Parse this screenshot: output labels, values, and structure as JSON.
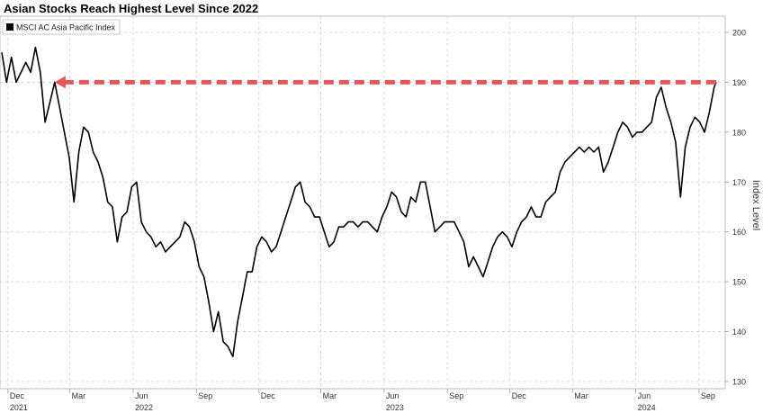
{
  "chart_data": {
    "type": "line",
    "title": "Asian Stocks Reach Highest Level Since 2022",
    "ylabel": "Index Level",
    "ylim": [
      130,
      202
    ],
    "yticks": [
      130,
      140,
      150,
      160,
      170,
      180,
      190,
      200
    ],
    "x_tick_labels": [
      {
        "month": "Dec",
        "year": "2021"
      },
      {
        "month": "Mar",
        "year": ""
      },
      {
        "month": "Jun",
        "year": "2022"
      },
      {
        "month": "Sep",
        "year": ""
      },
      {
        "month": "Dec",
        "year": ""
      },
      {
        "month": "Mar",
        "year": ""
      },
      {
        "month": "Jun",
        "year": "2023"
      },
      {
        "month": "Sep",
        "year": ""
      },
      {
        "month": "Dec",
        "year": ""
      },
      {
        "month": "Mar",
        "year": ""
      },
      {
        "month": "Jun",
        "year": "2024"
      },
      {
        "month": "Sep",
        "year": ""
      }
    ],
    "grid": true,
    "legend_position": "top-left",
    "series": [
      {
        "name": "MSCI AC Asia Pacific Index",
        "color": "#000000",
        "points": [
          [
            "2021-11-22",
            196
          ],
          [
            "2021-11-29",
            190
          ],
          [
            "2021-12-06",
            195
          ],
          [
            "2021-12-13",
            190
          ],
          [
            "2021-12-20",
            192
          ],
          [
            "2021-12-27",
            194
          ],
          [
            "2022-01-03",
            192
          ],
          [
            "2022-01-10",
            197
          ],
          [
            "2022-01-17",
            192
          ],
          [
            "2022-01-24",
            182
          ],
          [
            "2022-01-31",
            186
          ],
          [
            "2022-02-07",
            190
          ],
          [
            "2022-02-14",
            185
          ],
          [
            "2022-02-21",
            180
          ],
          [
            "2022-02-28",
            175
          ],
          [
            "2022-03-07",
            166
          ],
          [
            "2022-03-14",
            176
          ],
          [
            "2022-03-21",
            181
          ],
          [
            "2022-03-28",
            180
          ],
          [
            "2022-04-04",
            176
          ],
          [
            "2022-04-11",
            174
          ],
          [
            "2022-04-18",
            171
          ],
          [
            "2022-04-25",
            166
          ],
          [
            "2022-05-02",
            165
          ],
          [
            "2022-05-09",
            158
          ],
          [
            "2022-05-16",
            163
          ],
          [
            "2022-05-23",
            164
          ],
          [
            "2022-05-30",
            169
          ],
          [
            "2022-06-06",
            170
          ],
          [
            "2022-06-13",
            162
          ],
          [
            "2022-06-20",
            160
          ],
          [
            "2022-06-27",
            159
          ],
          [
            "2022-07-04",
            157
          ],
          [
            "2022-07-11",
            158
          ],
          [
            "2022-07-18",
            156
          ],
          [
            "2022-07-25",
            157
          ],
          [
            "2022-08-01",
            158
          ],
          [
            "2022-08-08",
            159
          ],
          [
            "2022-08-15",
            162
          ],
          [
            "2022-08-22",
            161
          ],
          [
            "2022-08-29",
            158
          ],
          [
            "2022-09-05",
            153
          ],
          [
            "2022-09-12",
            151
          ],
          [
            "2022-09-19",
            146
          ],
          [
            "2022-09-26",
            140
          ],
          [
            "2022-10-03",
            144
          ],
          [
            "2022-10-10",
            138
          ],
          [
            "2022-10-17",
            137
          ],
          [
            "2022-10-24",
            135
          ],
          [
            "2022-10-31",
            142
          ],
          [
            "2022-11-07",
            147
          ],
          [
            "2022-11-14",
            152
          ],
          [
            "2022-11-21",
            152
          ],
          [
            "2022-11-28",
            157
          ],
          [
            "2022-12-05",
            159
          ],
          [
            "2022-12-12",
            158
          ],
          [
            "2022-12-19",
            156
          ],
          [
            "2022-12-26",
            157
          ],
          [
            "2023-01-02",
            160
          ],
          [
            "2023-01-09",
            163
          ],
          [
            "2023-01-16",
            166
          ],
          [
            "2023-01-23",
            169
          ],
          [
            "2023-01-30",
            170
          ],
          [
            "2023-02-06",
            166
          ],
          [
            "2023-02-13",
            165
          ],
          [
            "2023-02-20",
            163
          ],
          [
            "2023-02-27",
            163
          ],
          [
            "2023-03-06",
            160
          ],
          [
            "2023-03-13",
            157
          ],
          [
            "2023-03-20",
            158
          ],
          [
            "2023-03-27",
            161
          ],
          [
            "2023-04-03",
            161
          ],
          [
            "2023-04-10",
            162
          ],
          [
            "2023-04-17",
            162
          ],
          [
            "2023-04-24",
            161
          ],
          [
            "2023-05-01",
            162
          ],
          [
            "2023-05-08",
            162
          ],
          [
            "2023-05-15",
            161
          ],
          [
            "2023-05-22",
            160
          ],
          [
            "2023-05-29",
            163
          ],
          [
            "2023-06-05",
            165
          ],
          [
            "2023-06-12",
            168
          ],
          [
            "2023-06-19",
            167
          ],
          [
            "2023-06-26",
            164
          ],
          [
            "2023-07-03",
            163
          ],
          [
            "2023-07-10",
            167
          ],
          [
            "2023-07-17",
            166
          ],
          [
            "2023-07-24",
            170
          ],
          [
            "2023-07-31",
            170
          ],
          [
            "2023-08-07",
            165
          ],
          [
            "2023-08-14",
            160
          ],
          [
            "2023-08-21",
            161
          ],
          [
            "2023-08-28",
            162
          ],
          [
            "2023-09-04",
            162
          ],
          [
            "2023-09-11",
            162
          ],
          [
            "2023-09-18",
            160
          ],
          [
            "2023-09-25",
            158
          ],
          [
            "2023-10-02",
            153
          ],
          [
            "2023-10-09",
            155
          ],
          [
            "2023-10-16",
            153
          ],
          [
            "2023-10-23",
            151
          ],
          [
            "2023-10-30",
            154
          ],
          [
            "2023-11-06",
            157
          ],
          [
            "2023-11-13",
            159
          ],
          [
            "2023-11-20",
            160
          ],
          [
            "2023-11-27",
            159
          ],
          [
            "2023-12-04",
            157
          ],
          [
            "2023-12-11",
            160
          ],
          [
            "2023-12-18",
            162
          ],
          [
            "2023-12-25",
            163
          ],
          [
            "2024-01-01",
            165
          ],
          [
            "2024-01-08",
            163
          ],
          [
            "2024-01-15",
            163
          ],
          [
            "2024-01-22",
            166
          ],
          [
            "2024-01-29",
            167
          ],
          [
            "2024-02-05",
            168
          ],
          [
            "2024-02-12",
            172
          ],
          [
            "2024-02-19",
            174
          ],
          [
            "2024-02-26",
            175
          ],
          [
            "2024-03-04",
            176
          ],
          [
            "2024-03-11",
            177
          ],
          [
            "2024-03-18",
            176
          ],
          [
            "2024-03-25",
            177
          ],
          [
            "2024-04-01",
            176
          ],
          [
            "2024-04-08",
            177
          ],
          [
            "2024-04-15",
            172
          ],
          [
            "2024-04-22",
            174
          ],
          [
            "2024-04-29",
            177
          ],
          [
            "2024-05-06",
            180
          ],
          [
            "2024-05-13",
            182
          ],
          [
            "2024-05-20",
            181
          ],
          [
            "2024-05-27",
            179
          ],
          [
            "2024-06-03",
            180
          ],
          [
            "2024-06-10",
            180
          ],
          [
            "2024-06-17",
            181
          ],
          [
            "2024-06-24",
            182
          ],
          [
            "2024-07-01",
            187
          ],
          [
            "2024-07-08",
            189
          ],
          [
            "2024-07-15",
            185
          ],
          [
            "2024-07-22",
            182
          ],
          [
            "2024-07-29",
            178
          ],
          [
            "2024-08-05",
            167
          ],
          [
            "2024-08-12",
            177
          ],
          [
            "2024-08-19",
            181
          ],
          [
            "2024-08-26",
            183
          ],
          [
            "2024-09-02",
            182
          ],
          [
            "2024-09-09",
            180
          ],
          [
            "2024-09-16",
            184
          ],
          [
            "2024-09-23",
            189
          ],
          [
            "2024-09-26",
            190
          ]
        ]
      }
    ],
    "annotations": [
      {
        "type": "dashed-arrow",
        "color": "#E0585C",
        "y": 190,
        "x_start": "2022-02-07",
        "x_end": "2024-09-26"
      }
    ]
  }
}
